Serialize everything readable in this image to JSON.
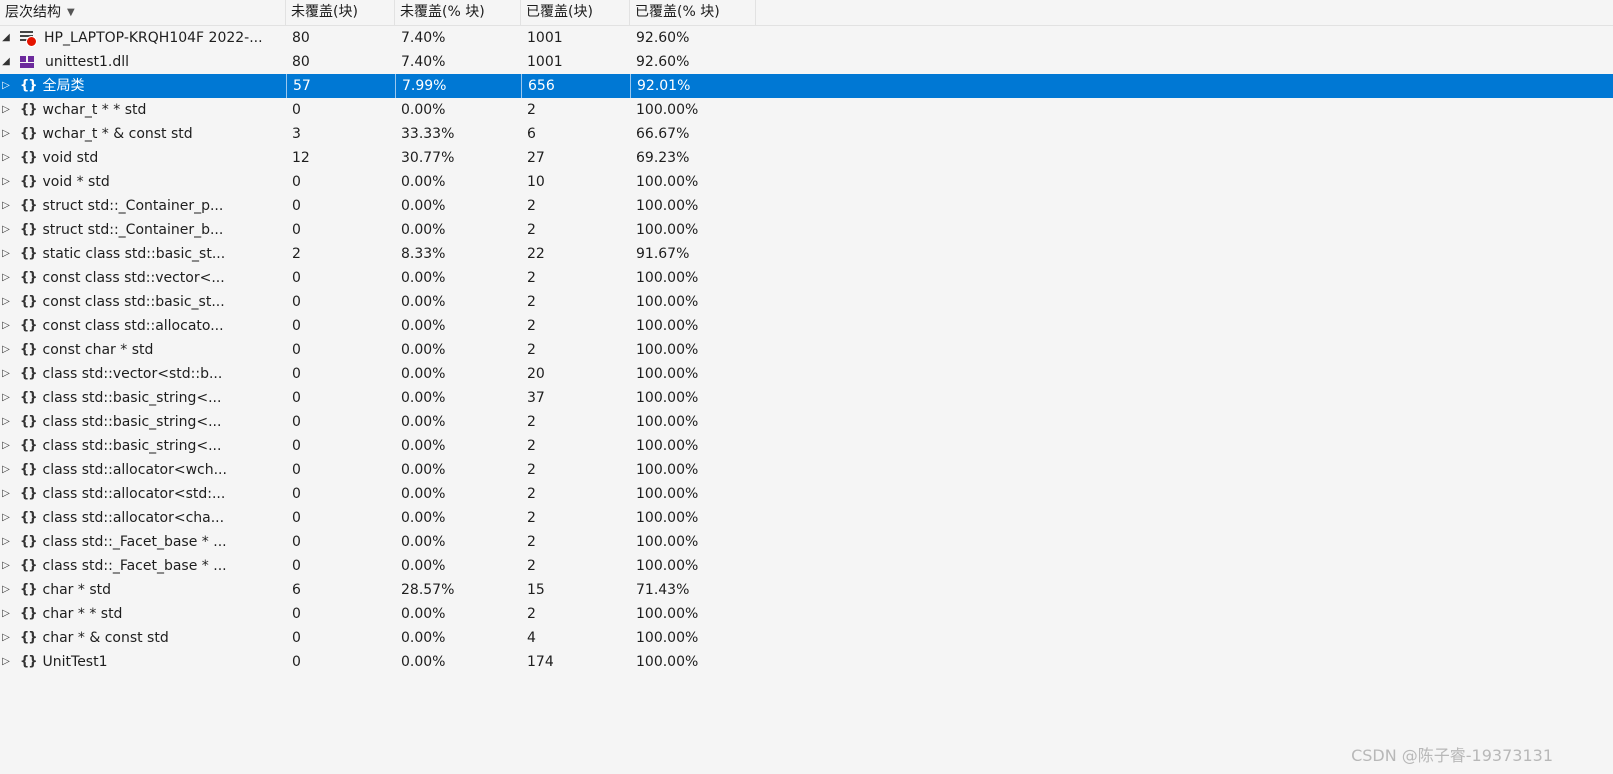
{
  "header": {
    "columns": [
      "层次结构",
      "未覆盖(块)",
      "未覆盖(% 块)",
      "已覆盖(块)",
      "已覆盖(% 块)"
    ]
  },
  "rows": [
    {
      "name": "HP_LAPTOP-KRQH104F 2022-...",
      "not_covered": "80",
      "not_covered_pct": "7.40%",
      "covered": "1001",
      "covered_pct": "92.60%"
    },
    {
      "name": "unittest1.dll",
      "not_covered": "80",
      "not_covered_pct": "7.40%",
      "covered": "1001",
      "covered_pct": "92.60%"
    },
    {
      "name": "全局类",
      "not_covered": "57",
      "not_covered_pct": "7.99%",
      "covered": "656",
      "covered_pct": "92.01%"
    },
    {
      "name": "wchar_t * * std",
      "not_covered": "0",
      "not_covered_pct": "0.00%",
      "covered": "2",
      "covered_pct": "100.00%"
    },
    {
      "name": "wchar_t * & const std",
      "not_covered": "3",
      "not_covered_pct": "33.33%",
      "covered": "6",
      "covered_pct": "66.67%"
    },
    {
      "name": "void std",
      "not_covered": "12",
      "not_covered_pct": "30.77%",
      "covered": "27",
      "covered_pct": "69.23%"
    },
    {
      "name": "void * std",
      "not_covered": "0",
      "not_covered_pct": "0.00%",
      "covered": "10",
      "covered_pct": "100.00%"
    },
    {
      "name": "struct std::_Container_p...",
      "not_covered": "0",
      "not_covered_pct": "0.00%",
      "covered": "2",
      "covered_pct": "100.00%"
    },
    {
      "name": "struct std::_Container_b...",
      "not_covered": "0",
      "not_covered_pct": "0.00%",
      "covered": "2",
      "covered_pct": "100.00%"
    },
    {
      "name": "static class std::basic_st...",
      "not_covered": "2",
      "not_covered_pct": "8.33%",
      "covered": "22",
      "covered_pct": "91.67%"
    },
    {
      "name": "const class std::vector<...",
      "not_covered": "0",
      "not_covered_pct": "0.00%",
      "covered": "2",
      "covered_pct": "100.00%"
    },
    {
      "name": "const class std::basic_st...",
      "not_covered": "0",
      "not_covered_pct": "0.00%",
      "covered": "2",
      "covered_pct": "100.00%"
    },
    {
      "name": "const class std::allocato...",
      "not_covered": "0",
      "not_covered_pct": "0.00%",
      "covered": "2",
      "covered_pct": "100.00%"
    },
    {
      "name": "const char * std",
      "not_covered": "0",
      "not_covered_pct": "0.00%",
      "covered": "2",
      "covered_pct": "100.00%"
    },
    {
      "name": "class std::vector<std::b...",
      "not_covered": "0",
      "not_covered_pct": "0.00%",
      "covered": "20",
      "covered_pct": "100.00%"
    },
    {
      "name": "class std::basic_string<...",
      "not_covered": "0",
      "not_covered_pct": "0.00%",
      "covered": "37",
      "covered_pct": "100.00%"
    },
    {
      "name": "class std::basic_string<...",
      "not_covered": "0",
      "not_covered_pct": "0.00%",
      "covered": "2",
      "covered_pct": "100.00%"
    },
    {
      "name": "class std::basic_string<...",
      "not_covered": "0",
      "not_covered_pct": "0.00%",
      "covered": "2",
      "covered_pct": "100.00%"
    },
    {
      "name": "class std::allocator<wch...",
      "not_covered": "0",
      "not_covered_pct": "0.00%",
      "covered": "2",
      "covered_pct": "100.00%"
    },
    {
      "name": "class std::allocator<std:...",
      "not_covered": "0",
      "not_covered_pct": "0.00%",
      "covered": "2",
      "covered_pct": "100.00%"
    },
    {
      "name": "class std::allocator<cha...",
      "not_covered": "0",
      "not_covered_pct": "0.00%",
      "covered": "2",
      "covered_pct": "100.00%"
    },
    {
      "name": "class std::_Facet_base * ...",
      "not_covered": "0",
      "not_covered_pct": "0.00%",
      "covered": "2",
      "covered_pct": "100.00%"
    },
    {
      "name": "class std::_Facet_base * ...",
      "not_covered": "0",
      "not_covered_pct": "0.00%",
      "covered": "2",
      "covered_pct": "100.00%"
    },
    {
      "name": "char * std",
      "not_covered": "6",
      "not_covered_pct": "28.57%",
      "covered": "15",
      "covered_pct": "71.43%"
    },
    {
      "name": "char * * std",
      "not_covered": "0",
      "not_covered_pct": "0.00%",
      "covered": "2",
      "covered_pct": "100.00%"
    },
    {
      "name": "char * & const std",
      "not_covered": "0",
      "not_covered_pct": "0.00%",
      "covered": "4",
      "covered_pct": "100.00%"
    },
    {
      "name": "UnitTest1",
      "not_covered": "0",
      "not_covered_pct": "0.00%",
      "covered": "174",
      "covered_pct": "100.00%"
    }
  ],
  "selected_row": 2,
  "colors": {
    "selection": "#0078d4",
    "stop_badge": "#e51400",
    "dll_icon": "#6c2a9c"
  },
  "icons": {
    "namespace": "namespace-braces-icon",
    "host": "coverage-file-icon",
    "module": "dll-module-icon"
  },
  "watermark": "CSDN @陈子睿-19373131"
}
